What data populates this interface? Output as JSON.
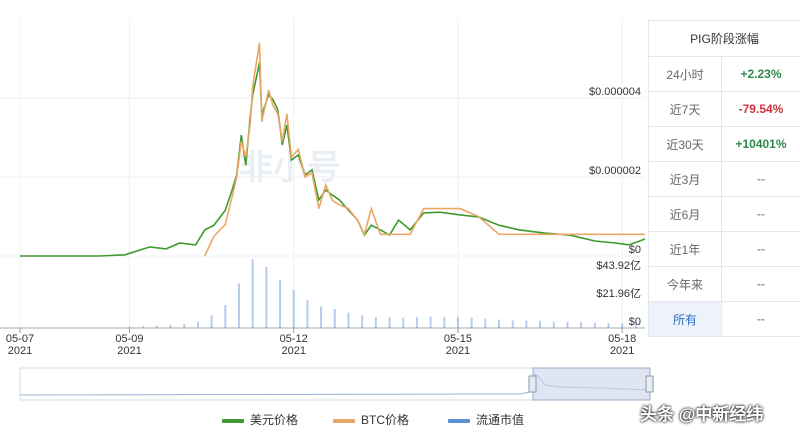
{
  "chart_data": [
    {
      "type": "line",
      "watermark": "非小号",
      "x": [
        "2021-05-07 00:00",
        "2021-05-08 11:00",
        "2021-05-08 22:00",
        "2021-05-09 09:00",
        "2021-05-09 16:00",
        "2021-05-09 22:00",
        "2021-05-10 05:00",
        "2021-05-10 09:00",
        "2021-05-10 13:00",
        "2021-05-10 18:00",
        "2021-05-10 21:00",
        "2021-05-10 23:00",
        "2021-05-11 01:00",
        "2021-05-11 03:00",
        "2021-05-11 05:00",
        "2021-05-11 06:00",
        "2021-05-11 09:00",
        "2021-05-11 10:00",
        "2021-05-11 13:00",
        "2021-05-11 15:00",
        "2021-05-11 17:00",
        "2021-05-11 19:00",
        "2021-05-11 21:00",
        "2021-05-11 23:00",
        "2021-05-12 02:00",
        "2021-05-12 05:00",
        "2021-05-12 08:00",
        "2021-05-12 11:00",
        "2021-05-12 14:00",
        "2021-05-12 17:00",
        "2021-05-12 20:00",
        "2021-05-13 00:00",
        "2021-05-13 04:00",
        "2021-05-13 07:00",
        "2021-05-13 10:00",
        "2021-05-13 14:00",
        "2021-05-13 18:00",
        "2021-05-13 22:00",
        "2021-05-14 03:00",
        "2021-05-14 09:00",
        "2021-05-14 16:00",
        "2021-05-15 01:00",
        "2021-05-15 09:00",
        "2021-05-15 18:00",
        "2021-05-16 03:00",
        "2021-05-16 14:00",
        "2021-05-17 01:00",
        "2021-05-17 12:00",
        "2021-05-17 21:00",
        "2021-05-18 03:00",
        "2021-05-18 10:00"
      ],
      "series": [
        {
          "name": "美元价格",
          "color": "#3f9a2e",
          "values": [
            0,
            0,
            3e-08,
            2.3e-07,
            1.8e-07,
            3.3e-07,
            2.8e-07,
            6.6e-07,
            7.8e-07,
            1.16e-06,
            1.67e-06,
            2.05e-06,
            3.06e-06,
            2.3e-06,
            3.57e-06,
            4.08e-06,
            4.89e-06,
            3.57e-06,
            4.08e-06,
            3.95e-06,
            3.7e-06,
            2.81e-06,
            3.32e-06,
            2.43e-06,
            2.56e-06,
            2.05e-06,
            2.18e-06,
            1.42e-06,
            1.67e-06,
            1.54e-06,
            1.42e-06,
            1.16e-06,
            9.1e-07,
            5.3e-07,
            7.8e-07,
            6.6e-07,
            5.3e-07,
            9.1e-07,
            6.6e-07,
            1.09e-06,
            1.11e-06,
            1.04e-06,
            9.9e-07,
            7.8e-07,
            6.6e-07,
            5.8e-07,
            5.3e-07,
            3.8e-07,
            3.3e-07,
            2.8e-07,
            4.3e-07
          ]
        },
        {
          "name": "BTC价格",
          "color": "#eba766",
          "values": [
            null,
            null,
            null,
            null,
            null,
            null,
            null,
            0,
            5e-07,
            8e-07,
            1.5e-06,
            2e-06,
            2.9e-06,
            2.5e-06,
            3.4e-06,
            4.3e-06,
            5.4e-06,
            3.4e-06,
            4.2e-06,
            3.8e-06,
            3.6e-06,
            2.9e-06,
            3.6e-06,
            2.5e-06,
            2.7e-06,
            2e-06,
            2.1e-06,
            1.2e-06,
            1.8e-06,
            1.4e-06,
            1.3e-06,
            1.2e-06,
            9e-07,
            5.5e-07,
            1.2e-06,
            5.5e-07,
            5.5e-07,
            5.5e-07,
            5.5e-07,
            1.2e-06,
            1.2e-06,
            1.2e-06,
            1e-06,
            5.5e-07,
            5.5e-07,
            5.5e-07,
            5.5e-07,
            5.5e-07,
            5.5e-07,
            5.5e-07,
            5.5e-07
          ]
        }
      ],
      "xlim": [
        "2021-05-07 00:00",
        "2021-05-18 10:00"
      ],
      "ylim": [
        0,
        6e-06
      ],
      "yticks": [
        {
          "value": 0,
          "label": "$0"
        },
        {
          "value": 2e-06,
          "label": "$0.000002"
        },
        {
          "value": 4e-06,
          "label": "$0.000004"
        }
      ],
      "grid": true
    },
    {
      "type": "bar",
      "x": [
        "2021-05-09 00:00",
        "2021-05-09 06:00",
        "2021-05-09 12:00",
        "2021-05-09 18:00",
        "2021-05-10 00:00",
        "2021-05-10 06:00",
        "2021-05-10 12:00",
        "2021-05-10 18:00",
        "2021-05-11 00:00",
        "2021-05-11 06:00",
        "2021-05-11 12:00",
        "2021-05-11 18:00",
        "2021-05-12 00:00",
        "2021-05-12 06:00",
        "2021-05-12 12:00",
        "2021-05-12 18:00",
        "2021-05-13 00:00",
        "2021-05-13 06:00",
        "2021-05-13 12:00",
        "2021-05-13 18:00",
        "2021-05-14 00:00",
        "2021-05-14 06:00",
        "2021-05-14 12:00",
        "2021-05-14 18:00",
        "2021-05-15 00:00",
        "2021-05-15 06:00",
        "2021-05-15 12:00",
        "2021-05-15 18:00",
        "2021-05-16 00:00",
        "2021-05-16 06:00",
        "2021-05-16 12:00",
        "2021-05-16 18:00",
        "2021-05-17 00:00",
        "2021-05-17 06:00",
        "2021-05-17 12:00",
        "2021-05-17 18:00",
        "2021-05-18 00:00",
        "2021-05-18 06:00"
      ],
      "series": [
        {
          "name": "流通市值",
          "color": "#5b8fd6",
          "values": [
            1.2,
            1.5,
            1.8,
            2.4,
            3,
            5,
            10,
            18,
            35,
            54,
            48,
            38,
            30,
            22,
            17,
            15,
            12,
            10,
            8.5,
            8.5,
            8,
            8.5,
            9,
            8.5,
            8.5,
            8,
            7.2,
            6.6,
            6,
            5.8,
            5.4,
            5,
            4.8,
            4.6,
            4.2,
            3.8,
            3.6,
            3.4
          ]
        }
      ],
      "xlim": [
        "2021-05-07 00:00",
        "2021-05-18 10:00"
      ],
      "xticks": [
        {
          "value": "2021-05-07 00:00",
          "label": "05-07",
          "year": "2021"
        },
        {
          "value": "2021-05-09 00:00",
          "label": "05-09",
          "year": "2021"
        },
        {
          "value": "2021-05-12 00:00",
          "label": "05-12",
          "year": "2021"
        },
        {
          "value": "2021-05-15 00:00",
          "label": "05-15",
          "year": "2021"
        },
        {
          "value": "2021-05-18 00:00",
          "label": "05-18",
          "year": "2021"
        }
      ],
      "ylim": [
        0,
        55
      ],
      "yticks": [
        {
          "value": 0,
          "label": "$0"
        },
        {
          "value": 21.96,
          "label": "$21.96亿"
        },
        {
          "value": 43.92,
          "label": "$43.92亿"
        }
      ]
    }
  ],
  "table": {
    "header": "PIG阶段涨幅",
    "rows": [
      [
        "24小时",
        "+2.23%"
      ],
      [
        "近7天",
        "-79.54%"
      ],
      [
        "近30天",
        "+10401%"
      ],
      [
        "近3月",
        "--"
      ],
      [
        "近6月",
        "--"
      ],
      [
        "近1年",
        "--"
      ],
      [
        "今年来",
        "--"
      ],
      [
        "所有",
        "--"
      ]
    ]
  },
  "watermark": "头条 @中新经纬"
}
